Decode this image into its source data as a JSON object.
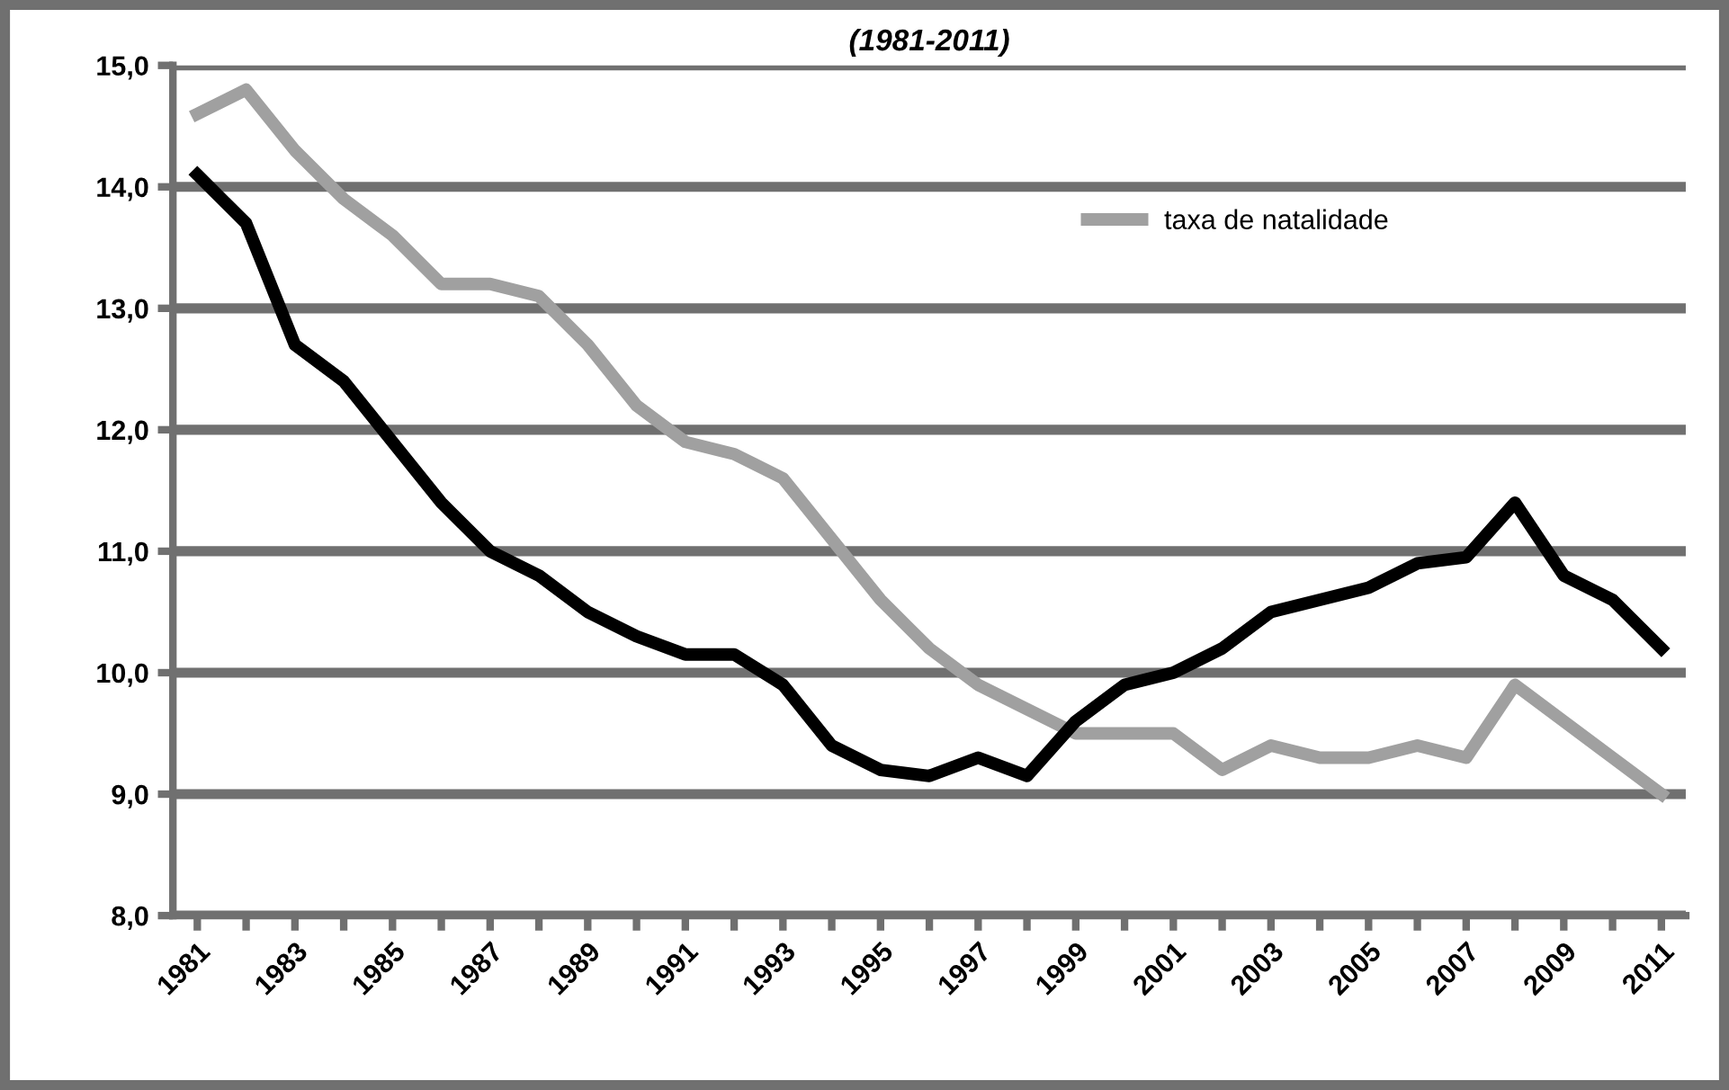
{
  "chart_data": {
    "type": "line",
    "title": "(1981-2011)",
    "categories": [
      "1981",
      null,
      "1983",
      null,
      "1985",
      null,
      "1987",
      null,
      "1989",
      null,
      "1991",
      null,
      "1993",
      null,
      "1995",
      null,
      "1997",
      null,
      "1999",
      null,
      "2001",
      null,
      "2003",
      null,
      "2005",
      null,
      "2007",
      null,
      "2009",
      null,
      "2011"
    ],
    "series": [
      {
        "name": "taxa de natalidade",
        "color": "#a0a0a0",
        "values": [
          14.6,
          14.8,
          14.3,
          13.9,
          13.6,
          13.2,
          13.2,
          13.1,
          12.7,
          12.2,
          11.9,
          11.8,
          11.6,
          11.1,
          10.6,
          10.2,
          9.9,
          9.7,
          9.5,
          9.5,
          9.5,
          9.2,
          9.4,
          9.3,
          9.3,
          9.4,
          9.3,
          9.9,
          9.6,
          9.3,
          9.0
        ]
      },
      {
        "color": "#000000",
        "values": [
          14.1,
          13.7,
          12.7,
          12.4,
          11.9,
          11.4,
          11.0,
          10.8,
          10.5,
          10.3,
          10.15,
          10.15,
          9.9,
          9.4,
          9.2,
          9.15,
          9.3,
          9.15,
          9.6,
          9.9,
          10.0,
          10.2,
          10.5,
          10.6,
          10.7,
          10.9,
          10.95,
          11.4,
          10.8,
          10.6,
          10.2
        ]
      }
    ],
    "ylim": [
      8,
      15
    ],
    "yticks": [
      {
        "value": 8,
        "label": "8,0"
      },
      {
        "value": 9,
        "label": "9,0"
      },
      {
        "value": 10,
        "label": "10,0"
      },
      {
        "value": 11,
        "label": "11,0"
      },
      {
        "value": 12,
        "label": "12,0"
      },
      {
        "value": 13,
        "label": "13,0"
      },
      {
        "value": 14,
        "label": "14,0"
      },
      {
        "value": 15,
        "label": "15,0"
      }
    ],
    "grid": "y",
    "legend": "top right",
    "marker": "none",
    "line_style": "solid"
  }
}
